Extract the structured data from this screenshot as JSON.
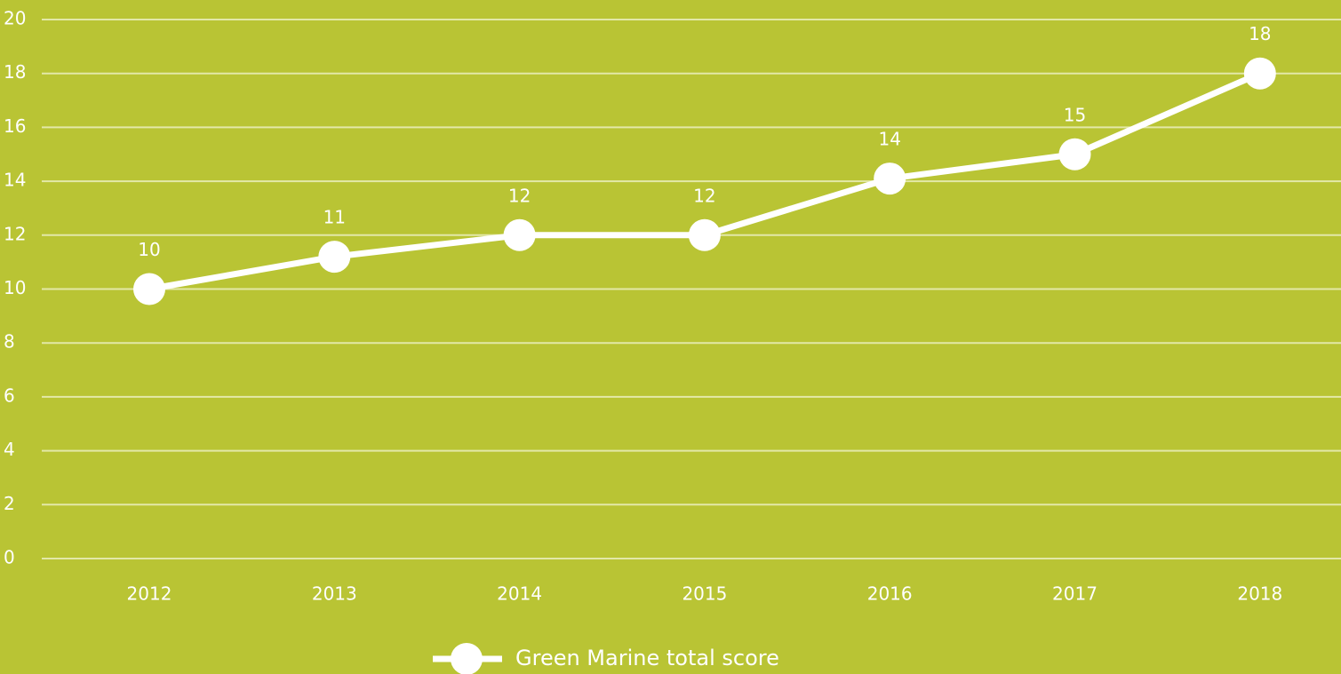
{
  "chart_data": {
    "type": "line",
    "categories": [
      "2012",
      "2013",
      "2014",
      "2015",
      "2016",
      "2017",
      "2018"
    ],
    "series": [
      {
        "name": "Green Marine total score",
        "color": "#ffffff",
        "values": [
          10,
          11.2,
          12,
          12,
          14.1,
          15,
          18
        ],
        "value_labels": [
          "10",
          "11",
          "12",
          "12",
          "14",
          "15",
          "18"
        ]
      }
    ],
    "ylim": [
      0,
      20
    ],
    "yticks": [
      0,
      2,
      4,
      6,
      8,
      10,
      12,
      14,
      16,
      18,
      20
    ],
    "grid": true,
    "legend": "bottom"
  }
}
